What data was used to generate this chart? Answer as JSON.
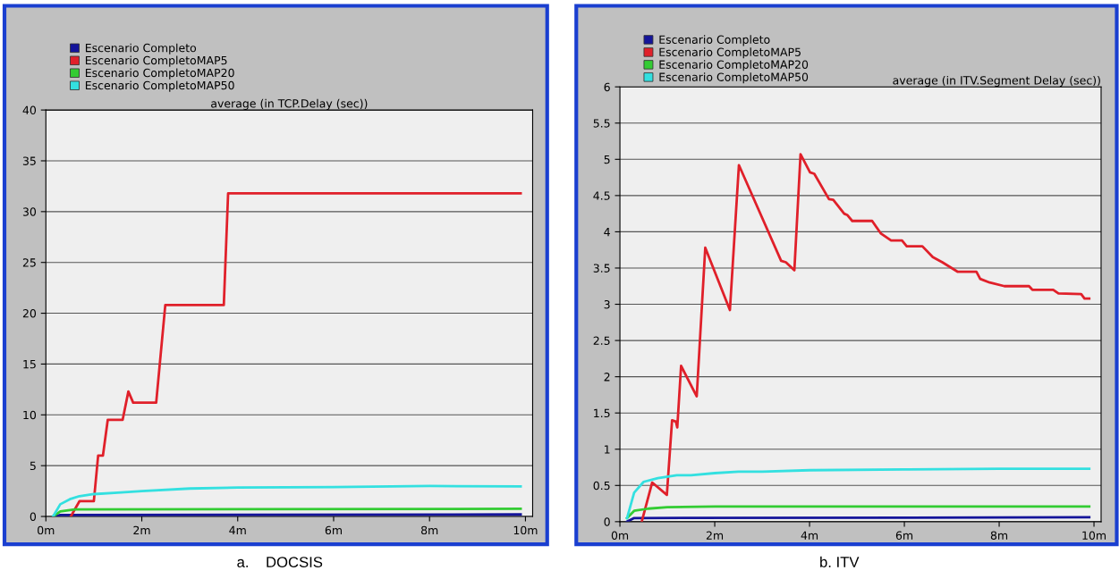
{
  "chart_data": [
    {
      "type": "line",
      "title": "average (in TCP.Delay (sec))",
      "annotations": [
        "a.    DOCSIS"
      ],
      "xlim": [
        0,
        10.15
      ],
      "ylim": [
        0,
        40
      ],
      "xticks": [
        {
          "value": 0,
          "label": "0m"
        },
        {
          "value": 2,
          "label": "2m"
        },
        {
          "value": 4,
          "label": "4m"
        },
        {
          "value": 6,
          "label": "6m"
        },
        {
          "value": 8,
          "label": "8m"
        },
        {
          "value": 10,
          "label": "10m"
        }
      ],
      "yticks": [
        0,
        5,
        10,
        15,
        20,
        25,
        30,
        35,
        40
      ],
      "grid": "y",
      "legend": "top left",
      "marker": "none",
      "line_style": "solid",
      "series": [
        {
          "name": "Escenario Completo",
          "color": "#14149a",
          "x": [
            0.15,
            0.3,
            9.9
          ],
          "values": [
            0,
            0.15,
            0.2
          ]
        },
        {
          "name": "Escenario CompletoMAP5",
          "color": "#e0202a",
          "x": [
            0.52,
            0.7,
            1.0,
            1.09,
            1.19,
            1.29,
            1.6,
            1.72,
            1.82,
            2.3,
            2.49,
            3.71,
            3.8,
            9.9
          ],
          "values": [
            0,
            1.5,
            1.5,
            6,
            6,
            9.5,
            9.5,
            12.3,
            11.2,
            11.2,
            20.8,
            20.8,
            31.8,
            31.8
          ]
        },
        {
          "name": "Escenario CompletoMAP20",
          "color": "#33cc33",
          "x": [
            0.15,
            0.3,
            0.6,
            9.9
          ],
          "values": [
            0,
            0.5,
            0.7,
            0.75
          ]
        },
        {
          "name": "Escenario CompletoMAP50",
          "color": "#33e0e0",
          "x": [
            0.15,
            0.3,
            0.5,
            0.7,
            1.0,
            1.5,
            2,
            3,
            4,
            6,
            8,
            9.9
          ],
          "values": [
            0,
            1.2,
            1.7,
            2.0,
            2.2,
            2.35,
            2.5,
            2.75,
            2.85,
            2.9,
            3.0,
            2.95
          ]
        }
      ]
    },
    {
      "type": "line",
      "title": "average (in ITV.Segment Delay (sec))",
      "annotations": [
        "b. ITV"
      ],
      "xlim": [
        0,
        10.15
      ],
      "ylim": [
        0,
        6
      ],
      "xticks": [
        {
          "value": 0,
          "label": "0m"
        },
        {
          "value": 2,
          "label": "2m"
        },
        {
          "value": 4,
          "label": "4m"
        },
        {
          "value": 6,
          "label": "6m"
        },
        {
          "value": 8,
          "label": "8m"
        },
        {
          "value": 10,
          "label": "10m"
        }
      ],
      "yticks": [
        0,
        0.5,
        1,
        1.5,
        2,
        2.5,
        3,
        3.5,
        4,
        4.5,
        5,
        5.5,
        6
      ],
      "grid": "y",
      "legend": "top left",
      "marker": "none",
      "line_style": "solid",
      "series": [
        {
          "name": "Escenario Completo",
          "color": "#14149a",
          "x": [
            0.15,
            0.3,
            9.9
          ],
          "values": [
            0,
            0.05,
            0.06
          ]
        },
        {
          "name": "Escenario CompletoMAP5",
          "color": "#e0202a",
          "x": [
            0.46,
            0.68,
            0.99,
            1.1,
            1.18,
            1.21,
            1.29,
            1.62,
            1.8,
            2.32,
            2.51,
            3.4,
            3.5,
            3.68,
            3.81,
            4.01,
            4.1,
            4.41,
            4.5,
            4.73,
            4.8,
            4.9,
            5.32,
            5.5,
            5.72,
            5.95,
            6.05,
            6.38,
            6.6,
            6.8,
            7.12,
            7.52,
            7.6,
            7.8,
            8.11,
            8.63,
            8.7,
            9.14,
            9.25,
            9.73,
            9.8,
            9.9
          ],
          "values": [
            0,
            0.54,
            0.37,
            1.4,
            1.38,
            1.3,
            2.15,
            1.73,
            3.78,
            2.92,
            4.92,
            3.6,
            3.58,
            3.47,
            5.07,
            4.82,
            4.8,
            4.45,
            4.44,
            4.25,
            4.23,
            4.15,
            4.15,
            3.98,
            3.88,
            3.88,
            3.8,
            3.8,
            3.65,
            3.58,
            3.45,
            3.45,
            3.35,
            3.3,
            3.25,
            3.25,
            3.2,
            3.2,
            3.15,
            3.14,
            3.08,
            3.08
          ]
        },
        {
          "name": "Escenario CompletoMAP20",
          "color": "#33cc33",
          "x": [
            0.15,
            0.3,
            0.6,
            1,
            2,
            9.9
          ],
          "values": [
            0.05,
            0.15,
            0.18,
            0.2,
            0.21,
            0.21
          ]
        },
        {
          "name": "Escenario CompletoMAP50",
          "color": "#33e0e0",
          "x": [
            0.15,
            0.3,
            0.5,
            0.8,
            1.2,
            1.5,
            2,
            2.5,
            3,
            4,
            6,
            8,
            9.9
          ],
          "values": [
            0.05,
            0.4,
            0.55,
            0.6,
            0.64,
            0.64,
            0.67,
            0.69,
            0.69,
            0.71,
            0.72,
            0.73,
            0.73
          ]
        }
      ]
    }
  ]
}
